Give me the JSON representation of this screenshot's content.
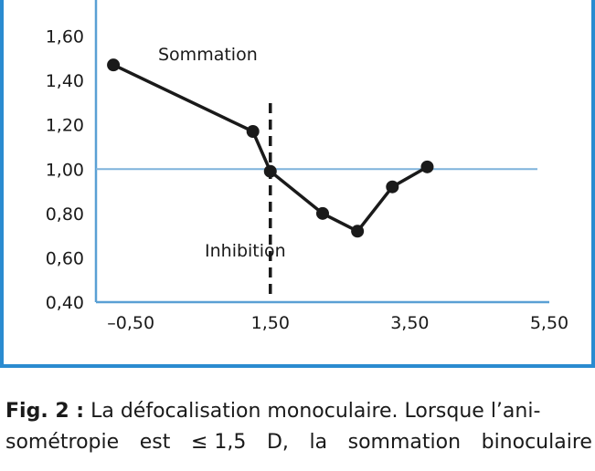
{
  "colors": {
    "frame": "#2a8bd0",
    "axis": "#5aa0d4",
    "reference_line": "#7fb3dc",
    "series": "#1a1a1a"
  },
  "chart_data": {
    "type": "line",
    "x": [
      -0.75,
      1.25,
      1.5,
      2.25,
      2.75,
      3.25,
      3.75
    ],
    "y": [
      1.47,
      1.17,
      0.99,
      0.8,
      0.72,
      0.92,
      1.01
    ],
    "series": [
      {
        "name": "",
        "x": [
          -0.75,
          1.25,
          1.5,
          2.25,
          2.75,
          3.25,
          3.75
        ],
        "y": [
          1.47,
          1.17,
          0.99,
          0.8,
          0.72,
          0.92,
          1.01
        ]
      }
    ],
    "xlim": [
      -1.0,
      5.5
    ],
    "ylim": [
      0.4,
      1.8
    ],
    "x_ticks": [
      -0.5,
      1.5,
      3.5,
      5.5
    ],
    "x_tick_labels": [
      "–0,50",
      "1,50",
      "3,50",
      "5,50"
    ],
    "y_ticks": [
      0.4,
      0.6,
      0.8,
      1.0,
      1.2,
      1.4,
      1.6
    ],
    "y_tick_labels": [
      "0,40",
      "0,60",
      "0,80",
      "1,00",
      "1,20",
      "1,40",
      "1,60"
    ],
    "reference_line_y": 1.0,
    "threshold_line_x": 1.5,
    "annotations": {
      "summation": "Sommation",
      "inhibition": "Inhibition"
    },
    "grid": false,
    "xlabel": "",
    "ylabel": "",
    "title": ""
  },
  "caption": {
    "label": "Fig. 2 :",
    "line1": "La défocalisation monoculaire. Lorsque l’ani-",
    "line2_words": [
      "sométropie",
      "est",
      "≤ 1,5",
      "D,",
      "la",
      "sommation",
      "binoculaire"
    ]
  }
}
